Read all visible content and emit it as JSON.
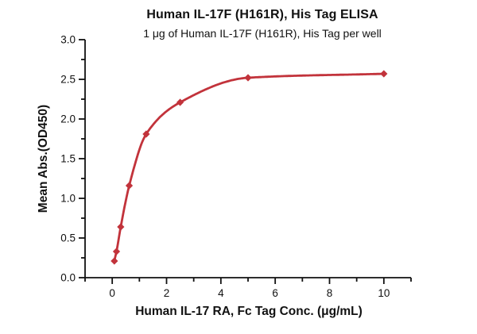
{
  "chart_data": {
    "type": "scatter",
    "title": "Human IL-17F (H161R), His Tag ELISA",
    "subtitle": "1 μg of Human IL-17F (H161R), His Tag per well",
    "xlabel": "Human IL-17 RA, Fc Tag Conc. (μg/mL)",
    "ylabel": "Mean Abs.(OD450)",
    "x": [
      0.078,
      0.156,
      0.313,
      0.625,
      1.25,
      2.5,
      5,
      10
    ],
    "y": [
      0.21,
      0.33,
      0.64,
      1.16,
      1.81,
      2.21,
      2.52,
      2.57
    ],
    "curve_style": "smooth sigmoidal fit through points",
    "marker": "diamond",
    "xlim": [
      -1,
      11
    ],
    "ylim": [
      0,
      3
    ],
    "x_major_ticks": [
      0,
      2,
      4,
      6,
      8,
      10
    ],
    "x_tick_labels": [
      "0",
      "2",
      "4",
      "6",
      "8",
      "10"
    ],
    "x_minor_step": 1,
    "y_major_ticks": [
      0.0,
      0.5,
      1.0,
      1.5,
      2.0,
      2.5,
      3.0
    ],
    "y_tick_labels": [
      "0.0",
      "0.5",
      "1.0",
      "1.5",
      "2.0",
      "2.5",
      "3.0"
    ],
    "y_minor_step": 0.25,
    "grid": false,
    "legend": false,
    "colors": {
      "curve": "#c2333b",
      "axis": "#111111",
      "text": "#111111"
    }
  }
}
